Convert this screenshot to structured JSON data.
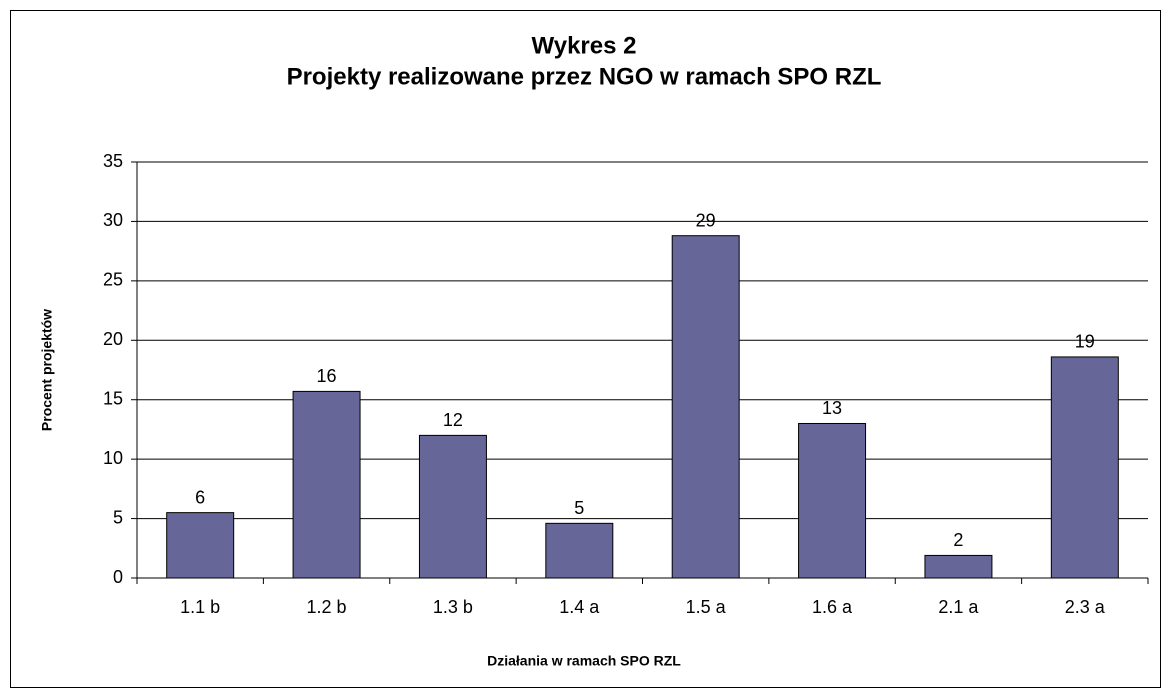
{
  "chart_data": {
    "type": "bar",
    "title": "Wykres 2",
    "subtitle": "Projekty realizowane przez NGO w ramach SPO RZL",
    "x_label": "Działania w ramach SPO RZL",
    "y_label": "Procent projektów",
    "categories": [
      "1.1 b",
      "1.2 b",
      "1.3 b",
      "1.4 a",
      "1.5 a",
      "1.6 a",
      "2.1 a",
      "2.3 a"
    ],
    "values": [
      5.5,
      15.7,
      12.0,
      4.6,
      28.8,
      13.0,
      1.9,
      18.6
    ],
    "value_labels": [
      "6",
      "16",
      "12",
      "5",
      "29",
      "13",
      "2",
      "19"
    ],
    "color": "#666699",
    "ylim": [
      0,
      35
    ],
    "yticks": [
      0,
      5,
      10,
      15,
      20,
      25,
      30,
      35
    ],
    "grid": true
  }
}
